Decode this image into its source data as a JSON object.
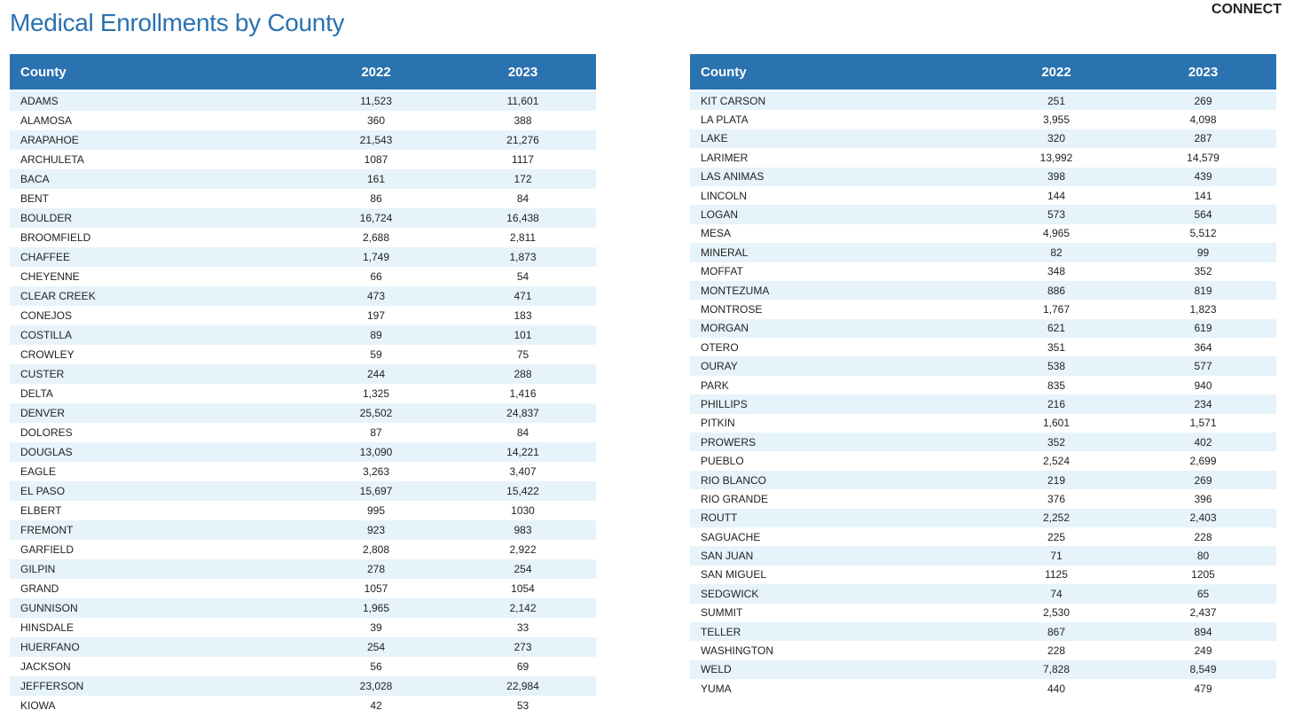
{
  "header": {
    "title": "Medical Enrollments by County",
    "logo": "CONNECT"
  },
  "tables": [
    {
      "columns": [
        "County",
        "2022",
        "2023"
      ],
      "rows": [
        [
          "ADAMS",
          "11,523",
          "11,601"
        ],
        [
          "ALAMOSA",
          "360",
          "388"
        ],
        [
          "ARAPAHOE",
          "21,543",
          "21,276"
        ],
        [
          "ARCHULETA",
          "1087",
          "1117"
        ],
        [
          "BACA",
          "161",
          "172"
        ],
        [
          "BENT",
          "86",
          "84"
        ],
        [
          "BOULDER",
          "16,724",
          "16,438"
        ],
        [
          "BROOMFIELD",
          "2,688",
          "2,811"
        ],
        [
          "CHAFFEE",
          "1,749",
          "1,873"
        ],
        [
          "CHEYENNE",
          "66",
          "54"
        ],
        [
          "CLEAR CREEK",
          "473",
          "471"
        ],
        [
          "CONEJOS",
          "197",
          "183"
        ],
        [
          "COSTILLA",
          "89",
          "101"
        ],
        [
          "CROWLEY",
          "59",
          "75"
        ],
        [
          "CUSTER",
          "244",
          "288"
        ],
        [
          "DELTA",
          "1,325",
          "1,416"
        ],
        [
          "DENVER",
          "25,502",
          "24,837"
        ],
        [
          "DOLORES",
          "87",
          "84"
        ],
        [
          "DOUGLAS",
          "13,090",
          "14,221"
        ],
        [
          "EAGLE",
          "3,263",
          "3,407"
        ],
        [
          "EL PASO",
          "15,697",
          "15,422"
        ],
        [
          "ELBERT",
          "995",
          "1030"
        ],
        [
          "FREMONT",
          "923",
          "983"
        ],
        [
          "GARFIELD",
          "2,808",
          "2,922"
        ],
        [
          "GILPIN",
          "278",
          "254"
        ],
        [
          "GRAND",
          "1057",
          "1054"
        ],
        [
          "GUNNISON",
          "1,965",
          "2,142"
        ],
        [
          "HINSDALE",
          "39",
          "33"
        ],
        [
          "HUERFANO",
          "254",
          "273"
        ],
        [
          "JACKSON",
          "56",
          "69"
        ],
        [
          "JEFFERSON",
          "23,028",
          "22,984"
        ],
        [
          "KIOWA",
          "42",
          "53"
        ]
      ]
    },
    {
      "columns": [
        "County",
        "2022",
        "2023"
      ],
      "rows": [
        [
          "KIT CARSON",
          "251",
          "269"
        ],
        [
          "LA PLATA",
          "3,955",
          "4,098"
        ],
        [
          "LAKE",
          "320",
          "287"
        ],
        [
          "LARIMER",
          "13,992",
          "14,579"
        ],
        [
          "LAS ANIMAS",
          "398",
          "439"
        ],
        [
          "LINCOLN",
          "144",
          "141"
        ],
        [
          "LOGAN",
          "573",
          "564"
        ],
        [
          "MESA",
          "4,965",
          "5,512"
        ],
        [
          "MINERAL",
          "82",
          "99"
        ],
        [
          "MOFFAT",
          "348",
          "352"
        ],
        [
          "MONTEZUMA",
          "886",
          "819"
        ],
        [
          "MONTROSE",
          "1,767",
          "1,823"
        ],
        [
          "MORGAN",
          "621",
          "619"
        ],
        [
          "OTERO",
          "351",
          "364"
        ],
        [
          "OURAY",
          "538",
          "577"
        ],
        [
          "PARK",
          "835",
          "940"
        ],
        [
          "PHILLIPS",
          "216",
          "234"
        ],
        [
          "PITKIN",
          "1,601",
          "1,571"
        ],
        [
          "PROWERS",
          "352",
          "402"
        ],
        [
          "PUEBLO",
          "2,524",
          "2,699"
        ],
        [
          "RIO BLANCO",
          "219",
          "269"
        ],
        [
          "RIO GRANDE",
          "376",
          "396"
        ],
        [
          "ROUTT",
          "2,252",
          "2,403"
        ],
        [
          "SAGUACHE",
          "225",
          "228"
        ],
        [
          "SAN JUAN",
          "71",
          "80"
        ],
        [
          "SAN MIGUEL",
          "1125",
          "1205"
        ],
        [
          "SEDGWICK",
          "74",
          "65"
        ],
        [
          "SUMMIT",
          "2,530",
          "2,437"
        ],
        [
          "TELLER",
          "867",
          "894"
        ],
        [
          "WASHINGTON",
          "228",
          "249"
        ],
        [
          "WELD",
          "7,828",
          "8,549"
        ],
        [
          "YUMA",
          "440",
          "479"
        ]
      ]
    }
  ]
}
